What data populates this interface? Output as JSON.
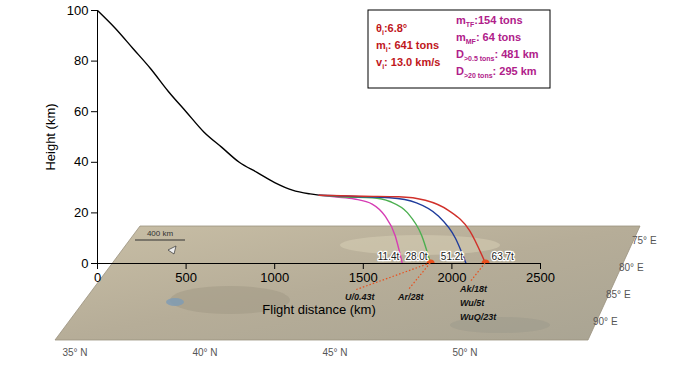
{
  "chart_data": {
    "type": "line",
    "x_label": "Flight distance (km)",
    "y_label": "Height (km)",
    "xlim": [
      0,
      2500
    ],
    "xticks": [
      0,
      500,
      1000,
      1500,
      2000,
      2500
    ],
    "ylim": [
      0,
      100
    ],
    "yticks": [
      0,
      20,
      40,
      60,
      80,
      100
    ],
    "grid": false,
    "series": [
      {
        "color": "#000000",
        "x": [
          0,
          100,
          200,
          300,
          400,
          500,
          600,
          700,
          800,
          900,
          1000,
          1100,
          1200,
          1250
        ],
        "values": [
          100,
          93,
          85,
          77,
          68,
          60,
          52,
          46,
          40,
          36,
          32,
          29,
          27.5,
          27
        ]
      },
      {
        "label": "11.4t",
        "color": "#d63cb4",
        "x": [
          1250,
          1350,
          1450,
          1550,
          1620,
          1680,
          1720
        ],
        "values": [
          27,
          26.3,
          25.5,
          23.5,
          19,
          11,
          0
        ]
      },
      {
        "label": "28.0t",
        "color": "#4caf50",
        "x": [
          1250,
          1400,
          1550,
          1650,
          1750,
          1830,
          1880
        ],
        "values": [
          27,
          26.3,
          26,
          24.5,
          20,
          11,
          0
        ]
      },
      {
        "label": "51.2t",
        "color": "#1f3c9c",
        "x": [
          1250,
          1450,
          1650,
          1800,
          1920,
          2020,
          2080
        ],
        "values": [
          27,
          26.5,
          26,
          24,
          19,
          10,
          0
        ]
      },
      {
        "label": "63.7t",
        "color": "#d0302a",
        "x": [
          1250,
          1500,
          1700,
          1850,
          1980,
          2100,
          2190
        ],
        "values": [
          27,
          26.6,
          26.4,
          25,
          21,
          13,
          0
        ]
      }
    ],
    "impact_points": [
      {
        "x": 1880,
        "y": 0,
        "color": "#e8501e",
        "labels": [
          "U/0.43t",
          "Ar/28t"
        ]
      },
      {
        "x": 2190,
        "y": 0,
        "color": "#e8501e",
        "labels": [
          "Ak/18t",
          "Wu/5t",
          "WuQ/23t"
        ]
      }
    ],
    "info_box": [
      [
        {
          "symbol": "θ",
          "subscript": "i",
          "text": ":6.8°",
          "color": "#c0161c"
        },
        {
          "symbol": "m",
          "subscript": "i",
          "text": ": 641 tons",
          "color": "#c0161c"
        },
        {
          "symbol": "v",
          "subscript": "i",
          "text": ": 13.0 km/s",
          "color": "#c0161c"
        }
      ],
      [
        {
          "symbol": "m",
          "subscript": "TF",
          "text": ":154 tons",
          "color": "#b0208a"
        },
        {
          "symbol": "m",
          "subscript": "MF",
          "text": ": 64 tons",
          "color": "#b0208a"
        },
        {
          "symbol": "D",
          "subscript": ">0.5 tons",
          "text": ": 481 km",
          "color": "#b0208a"
        },
        {
          "symbol": "D",
          "subscript": ">20 tons",
          "text": ": 295 km",
          "color": "#b0208a"
        }
      ]
    ],
    "map_labels": {
      "scale": "400 km",
      "latitudes": [
        "35° N",
        "40° N",
        "45° N",
        "50° N"
      ],
      "longitudes": [
        "75° E",
        "80° E",
        "85° E",
        "90° E"
      ]
    }
  }
}
